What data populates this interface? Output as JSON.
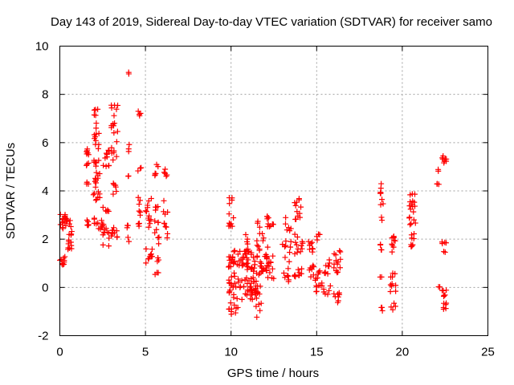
{
  "chart_data": {
    "type": "scatter",
    "title": "Day 143 of 2019, Sidereal Day-to-day VTEC variation (SDTVAR) for receiver samo",
    "xlabel": "GPS time / hours",
    "ylabel": "SDTVAR / TECUs",
    "xlim": [
      0,
      25
    ],
    "ylim": [
      -2,
      10
    ],
    "xticks": [
      "0",
      "5",
      "10",
      "15",
      "20",
      "25"
    ],
    "yticks": [
      "-2",
      "0",
      "2",
      "4",
      "6",
      "8",
      "10"
    ],
    "marker": "plus",
    "marker_color": "#ff0000",
    "grid": true,
    "clusters": [
      {
        "x0": 0.0,
        "x1": 0.35,
        "y0": 0.9,
        "y1": 1.3,
        "n": 10
      },
      {
        "x0": 0.0,
        "x1": 0.45,
        "y0": 2.4,
        "y1": 3.05,
        "n": 20
      },
      {
        "x0": 0.45,
        "x1": 0.7,
        "y0": 1.5,
        "y1": 2.8,
        "n": 16
      },
      {
        "x0": 1.55,
        "x1": 1.7,
        "y0": 4.2,
        "y1": 5.8,
        "n": 12
      },
      {
        "x0": 1.55,
        "x1": 1.7,
        "y0": 2.5,
        "y1": 2.8,
        "n": 5
      },
      {
        "x0": 1.95,
        "x1": 2.4,
        "y0": 3.6,
        "y1": 5.3,
        "n": 25
      },
      {
        "x0": 2.0,
        "x1": 2.3,
        "y0": 5.7,
        "y1": 7.4,
        "n": 16
      },
      {
        "x0": 2.0,
        "x1": 2.6,
        "y0": 2.2,
        "y1": 2.9,
        "n": 14
      },
      {
        "x0": 2.5,
        "x1": 2.9,
        "y0": 1.7,
        "y1": 3.8,
        "n": 14
      },
      {
        "x0": 2.5,
        "x1": 2.9,
        "y0": 5.0,
        "y1": 5.8,
        "n": 10
      },
      {
        "x0": 3.0,
        "x1": 3.4,
        "y0": 5.2,
        "y1": 7.6,
        "n": 20
      },
      {
        "x0": 3.0,
        "x1": 3.3,
        "y0": 3.8,
        "y1": 4.5,
        "n": 6
      },
      {
        "x0": 3.0,
        "x1": 3.4,
        "y0": 1.9,
        "y1": 2.5,
        "n": 10
      },
      {
        "x0": 3.9,
        "x1": 4.05,
        "y0": 8.85,
        "y1": 8.95,
        "n": 2
      },
      {
        "x0": 3.9,
        "x1": 4.1,
        "y0": 5.5,
        "y1": 6.0,
        "n": 3
      },
      {
        "x0": 3.9,
        "x1": 4.05,
        "y0": 4.6,
        "y1": 4.7,
        "n": 2
      },
      {
        "x0": 3.9,
        "x1": 4.1,
        "y0": 1.9,
        "y1": 2.8,
        "n": 5
      },
      {
        "x0": 4.55,
        "x1": 4.75,
        "y0": 7.0,
        "y1": 7.4,
        "n": 4
      },
      {
        "x0": 4.55,
        "x1": 4.75,
        "y0": 4.8,
        "y1": 5.0,
        "n": 3
      },
      {
        "x0": 4.55,
        "x1": 4.75,
        "y0": 2.3,
        "y1": 3.8,
        "n": 10
      },
      {
        "x0": 5.0,
        "x1": 5.4,
        "y0": 2.4,
        "y1": 3.7,
        "n": 12
      },
      {
        "x0": 5.0,
        "x1": 5.4,
        "y0": 0.6,
        "y1": 1.7,
        "n": 10
      },
      {
        "x0": 5.5,
        "x1": 5.75,
        "y0": 4.6,
        "y1": 5.1,
        "n": 6
      },
      {
        "x0": 5.5,
        "x1": 5.8,
        "y0": 1.8,
        "y1": 3.4,
        "n": 12
      },
      {
        "x0": 5.5,
        "x1": 5.8,
        "y0": 0.5,
        "y1": 1.3,
        "n": 6
      },
      {
        "x0": 6.05,
        "x1": 6.3,
        "y0": 4.6,
        "y1": 4.9,
        "n": 5
      },
      {
        "x0": 6.05,
        "x1": 6.3,
        "y0": 2.0,
        "y1": 3.8,
        "n": 10
      },
      {
        "x0": 9.85,
        "x1": 10.15,
        "y0": 2.5,
        "y1": 3.9,
        "n": 12
      },
      {
        "x0": 9.85,
        "x1": 10.4,
        "y0": -1.2,
        "y1": 1.6,
        "n": 45
      },
      {
        "x0": 10.4,
        "x1": 11.5,
        "y0": -0.5,
        "y1": 1.5,
        "n": 60
      },
      {
        "x0": 10.6,
        "x1": 11.0,
        "y0": 0.5,
        "y1": 2.2,
        "n": 15
      },
      {
        "x0": 11.4,
        "x1": 11.8,
        "y0": -1.3,
        "y1": 0.2,
        "n": 15
      },
      {
        "x0": 11.5,
        "x1": 12.2,
        "y0": 0.5,
        "y1": 3.0,
        "n": 30
      },
      {
        "x0": 11.6,
        "x1": 12.5,
        "y0": 0.3,
        "y1": 1.4,
        "n": 20
      },
      {
        "x0": 12.1,
        "x1": 12.5,
        "y0": 2.5,
        "y1": 3.0,
        "n": 8
      },
      {
        "x0": 13.0,
        "x1": 13.5,
        "y0": 1.0,
        "y1": 2.9,
        "n": 16
      },
      {
        "x0": 13.0,
        "x1": 13.5,
        "y0": 0.2,
        "y1": 0.9,
        "n": 8
      },
      {
        "x0": 13.7,
        "x1": 14.1,
        "y0": 2.8,
        "y1": 3.7,
        "n": 12
      },
      {
        "x0": 13.7,
        "x1": 14.2,
        "y0": 1.3,
        "y1": 2.3,
        "n": 12
      },
      {
        "x0": 13.7,
        "x1": 14.3,
        "y0": 0.4,
        "y1": 0.8,
        "n": 10
      },
      {
        "x0": 14.5,
        "x1": 14.8,
        "y0": 1.3,
        "y1": 1.9,
        "n": 8
      },
      {
        "x0": 14.5,
        "x1": 14.9,
        "y0": 0.4,
        "y1": 1.0,
        "n": 8
      },
      {
        "x0": 14.9,
        "x1": 15.4,
        "y0": -0.2,
        "y1": 0.7,
        "n": 14
      },
      {
        "x0": 15.0,
        "x1": 15.2,
        "y0": 1.9,
        "y1": 2.3,
        "n": 4
      },
      {
        "x0": 15.4,
        "x1": 15.8,
        "y0": 0.5,
        "y1": 1.3,
        "n": 10
      },
      {
        "x0": 15.4,
        "x1": 15.8,
        "y0": -0.3,
        "y1": 0.3,
        "n": 6
      },
      {
        "x0": 16.0,
        "x1": 16.4,
        "y0": 0.6,
        "y1": 1.7,
        "n": 14
      },
      {
        "x0": 16.0,
        "x1": 16.4,
        "y0": -0.7,
        "y1": -0.2,
        "n": 8
      },
      {
        "x0": 18.7,
        "x1": 18.9,
        "y0": 2.6,
        "y1": 4.3,
        "n": 10
      },
      {
        "x0": 18.7,
        "x1": 18.9,
        "y0": 1.5,
        "y1": 2.0,
        "n": 4
      },
      {
        "x0": 18.7,
        "x1": 18.9,
        "y0": 0.4,
        "y1": 0.6,
        "n": 2
      },
      {
        "x0": 18.7,
        "x1": 18.9,
        "y0": -1.0,
        "y1": -0.8,
        "n": 3
      },
      {
        "x0": 19.3,
        "x1": 19.6,
        "y0": 1.2,
        "y1": 2.3,
        "n": 10
      },
      {
        "x0": 19.3,
        "x1": 19.7,
        "y0": -1.0,
        "y1": 0.7,
        "n": 14
      },
      {
        "x0": 20.4,
        "x1": 20.8,
        "y0": 2.6,
        "y1": 4.0,
        "n": 18
      },
      {
        "x0": 20.4,
        "x1": 20.8,
        "y0": 1.6,
        "y1": 2.3,
        "n": 8
      },
      {
        "x0": 22.0,
        "x1": 22.2,
        "y0": 4.8,
        "y1": 5.0,
        "n": 2
      },
      {
        "x0": 22.0,
        "x1": 22.2,
        "y0": 4.1,
        "y1": 4.3,
        "n": 3
      },
      {
        "x0": 22.0,
        "x1": 22.2,
        "y0": 0.0,
        "y1": 0.2,
        "n": 2
      },
      {
        "x0": 22.3,
        "x1": 22.6,
        "y0": 5.1,
        "y1": 5.5,
        "n": 8
      },
      {
        "x0": 22.3,
        "x1": 22.6,
        "y0": 1.4,
        "y1": 2.0,
        "n": 6
      },
      {
        "x0": 22.3,
        "x1": 22.6,
        "y0": -1.0,
        "y1": -0.1,
        "n": 12
      }
    ]
  }
}
